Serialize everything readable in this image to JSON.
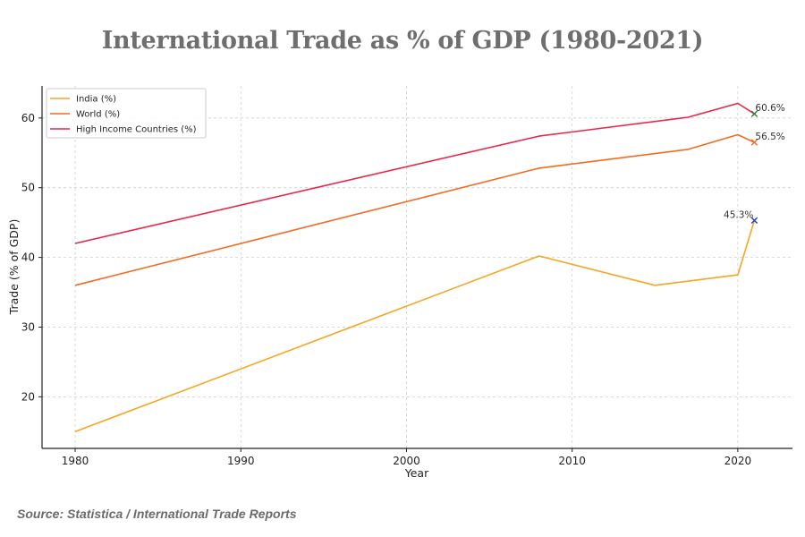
{
  "page": {
    "title": "International Trade as % of GDP (1980-2021)",
    "source": "Source: Statistica / International Trade Reports"
  },
  "chart_data": {
    "type": "line",
    "title": "International Trade as % of GDP (1980-2021)",
    "xlabel": "Year",
    "ylabel": "Trade (% of GDP)",
    "xlim": [
      1978,
      2023.3
    ],
    "ylim": [
      12.6,
      64.6
    ],
    "xticks": [
      1980,
      1990,
      2000,
      2010,
      2020
    ],
    "yticks": [
      20,
      30,
      40,
      50,
      60
    ],
    "grid": true,
    "legend_position": "top-left",
    "series": [
      {
        "name": "India (%)",
        "color": "#f5a623",
        "points": [
          [
            1980,
            15.0
          ],
          [
            2008,
            40.2
          ],
          [
            2015,
            36.0
          ],
          [
            2020,
            37.5
          ],
          [
            2021,
            45.3
          ]
        ]
      },
      {
        "name": "World (%)",
        "color": "#f26b21",
        "points": [
          [
            1980,
            36.0
          ],
          [
            2008,
            52.8
          ],
          [
            2017,
            55.5
          ],
          [
            2020,
            57.6
          ],
          [
            2021,
            56.5
          ]
        ]
      },
      {
        "name": "High Income Countries (%)",
        "color": "#e8264c",
        "points": [
          [
            1980,
            42.0
          ],
          [
            2008,
            57.4
          ],
          [
            2017,
            60.1
          ],
          [
            2020,
            62.1
          ],
          [
            2021,
            60.6
          ]
        ]
      }
    ],
    "annotations": [
      {
        "x": 2021,
        "y": 45.3,
        "text": "45.3%",
        "marker_color": "#1f3fbf",
        "anchor": "end"
      },
      {
        "x": 2021,
        "y": 56.5,
        "text": "56.5%",
        "marker_color": "#f26b21",
        "anchor": "start"
      },
      {
        "x": 2021,
        "y": 60.6,
        "text": "60.6%",
        "marker_color": "#2e7d32",
        "anchor": "start"
      }
    ]
  }
}
